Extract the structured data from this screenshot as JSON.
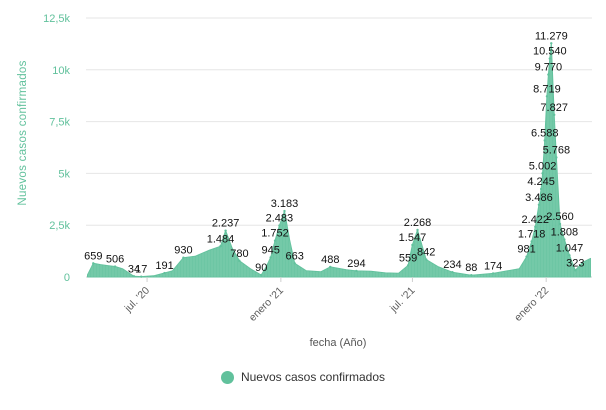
{
  "chart_data": {
    "type": "area",
    "xlabel": "fecha (Año)",
    "ylabel": "Nuevos casos confirmados",
    "ylim": [
      0,
      12500
    ],
    "yticks": [
      {
        "value": 0,
        "label": "0"
      },
      {
        "value": 2500,
        "label": "2,5k"
      },
      {
        "value": 5000,
        "label": "5k"
      },
      {
        "value": 7500,
        "label": "7,5k"
      },
      {
        "value": 10000,
        "label": "10k"
      },
      {
        "value": 12500,
        "label": "12,5k"
      }
    ],
    "xlim": [
      "2020-04-08",
      "2022-03-05"
    ],
    "xticks": [
      {
        "date": "2020-07-01",
        "label": "jul. '20"
      },
      {
        "date": "2021-01-01",
        "label": "enero '21"
      },
      {
        "date": "2021-07-01",
        "label": "jul. '21"
      },
      {
        "date": "2022-01-01",
        "label": "enero '22"
      }
    ],
    "grid": true,
    "legend": "bottom-center",
    "color": "#61c19c",
    "series": [
      {
        "name": "Nuevos casos confirmados",
        "points": [
          {
            "date": "2020-04-10",
            "value": 100
          },
          {
            "date": "2020-04-18",
            "value": 659,
            "label": "659"
          },
          {
            "date": "2020-04-28",
            "value": 600
          },
          {
            "date": "2020-05-08",
            "value": 550
          },
          {
            "date": "2020-05-18",
            "value": 506,
            "label": "506"
          },
          {
            "date": "2020-05-28",
            "value": 400
          },
          {
            "date": "2020-06-08",
            "value": 150
          },
          {
            "date": "2020-06-13",
            "value": 34,
            "label": "34"
          },
          {
            "date": "2020-06-23",
            "value": 17,
            "label": "17"
          },
          {
            "date": "2020-07-10",
            "value": 60
          },
          {
            "date": "2020-07-25",
            "value": 191,
            "label": "191"
          },
          {
            "date": "2020-08-05",
            "value": 300
          },
          {
            "date": "2020-08-20",
            "value": 930,
            "label": "930"
          },
          {
            "date": "2020-09-05",
            "value": 1000
          },
          {
            "date": "2020-09-25",
            "value": 1300
          },
          {
            "date": "2020-10-10",
            "value": 1484,
            "label": "1.484"
          },
          {
            "date": "2020-10-17",
            "value": 2237,
            "label": "2.237"
          },
          {
            "date": "2020-10-26",
            "value": 1400
          },
          {
            "date": "2020-11-05",
            "value": 780,
            "label": "780"
          },
          {
            "date": "2020-11-20",
            "value": 400
          },
          {
            "date": "2020-12-05",
            "value": 90,
            "label": "90"
          },
          {
            "date": "2020-12-12",
            "value": 500
          },
          {
            "date": "2020-12-18",
            "value": 945,
            "label": "945"
          },
          {
            "date": "2020-12-24",
            "value": 1752,
            "label": "1.752"
          },
          {
            "date": "2020-12-30",
            "value": 2483,
            "label": "2.483"
          },
          {
            "date": "2021-01-06",
            "value": 3183,
            "label": "3.183"
          },
          {
            "date": "2021-01-13",
            "value": 1800
          },
          {
            "date": "2021-01-20",
            "value": 663,
            "label": "663"
          },
          {
            "date": "2021-02-05",
            "value": 300
          },
          {
            "date": "2021-02-25",
            "value": 250
          },
          {
            "date": "2021-03-10",
            "value": 488,
            "label": "488"
          },
          {
            "date": "2021-04-01",
            "value": 350
          },
          {
            "date": "2021-04-15",
            "value": 294,
            "label": "294"
          },
          {
            "date": "2021-05-05",
            "value": 280
          },
          {
            "date": "2021-05-25",
            "value": 200
          },
          {
            "date": "2021-06-12",
            "value": 180
          },
          {
            "date": "2021-06-25",
            "value": 559,
            "label": "559"
          },
          {
            "date": "2021-07-01",
            "value": 1547,
            "label": "1.547"
          },
          {
            "date": "2021-07-08",
            "value": 2268,
            "label": "2.268"
          },
          {
            "date": "2021-07-20",
            "value": 842,
            "label": "842"
          },
          {
            "date": "2021-08-05",
            "value": 500
          },
          {
            "date": "2021-08-25",
            "value": 234,
            "label": "234"
          },
          {
            "date": "2021-09-20",
            "value": 88,
            "label": "88"
          },
          {
            "date": "2021-10-20",
            "value": 174,
            "label": "174"
          },
          {
            "date": "2021-11-25",
            "value": 400
          },
          {
            "date": "2021-12-05",
            "value": 981,
            "label": "981"
          },
          {
            "date": "2021-12-12",
            "value": 1718,
            "label": "1.718"
          },
          {
            "date": "2021-12-17",
            "value": 2422,
            "label": "2.422"
          },
          {
            "date": "2021-12-22",
            "value": 3486,
            "label": "3.486"
          },
          {
            "date": "2021-12-25",
            "value": 4245,
            "label": "4.245"
          },
          {
            "date": "2021-12-27",
            "value": 5002,
            "label": "5.002"
          },
          {
            "date": "2021-12-30",
            "value": 6588,
            "label": "6.588"
          },
          {
            "date": "2022-01-02",
            "value": 8719,
            "label": "8.719"
          },
          {
            "date": "2022-01-04",
            "value": 9770,
            "label": "9.770"
          },
          {
            "date": "2022-01-06",
            "value": 10540,
            "label": "10.540"
          },
          {
            "date": "2022-01-08",
            "value": 11279,
            "label": "11.279"
          },
          {
            "date": "2022-01-12",
            "value": 7827,
            "label": "7.827"
          },
          {
            "date": "2022-01-15",
            "value": 5768,
            "label": "5.768"
          },
          {
            "date": "2022-01-20",
            "value": 2560,
            "label": "2.560"
          },
          {
            "date": "2022-01-26",
            "value": 1808,
            "label": "1.808"
          },
          {
            "date": "2022-02-02",
            "value": 1047,
            "label": "1.047"
          },
          {
            "date": "2022-02-10",
            "value": 323,
            "label": "323"
          },
          {
            "date": "2022-02-20",
            "value": 700
          },
          {
            "date": "2022-03-03",
            "value": 900
          }
        ]
      }
    ]
  }
}
